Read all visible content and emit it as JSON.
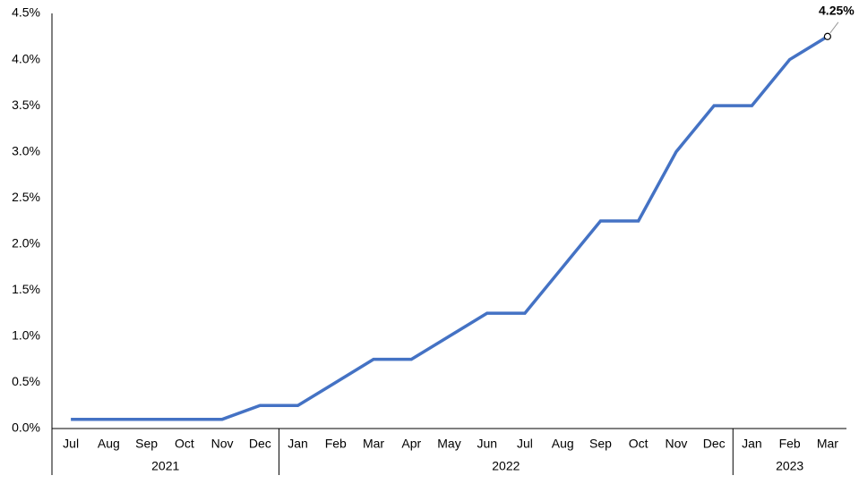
{
  "chart_data": {
    "type": "line",
    "category_groups": [
      {
        "name": "2021",
        "categories": [
          "Jul",
          "Aug",
          "Sep",
          "Oct",
          "Nov",
          "Dec"
        ]
      },
      {
        "name": "2022",
        "categories": [
          "Jan",
          "Feb",
          "Mar",
          "Apr",
          "May",
          "Jun",
          "Jul",
          "Aug",
          "Sep",
          "Oct",
          "Nov",
          "Dec"
        ]
      },
      {
        "name": "2023",
        "categories": [
          "Jan",
          "Feb",
          "Mar"
        ]
      }
    ],
    "values": [
      0.1,
      0.1,
      0.1,
      0.1,
      0.1,
      0.25,
      0.25,
      0.5,
      0.75,
      0.75,
      1.0,
      1.25,
      1.25,
      1.75,
      2.25,
      2.25,
      3.0,
      3.5,
      3.5,
      4.0,
      4.25
    ],
    "value_labels": [
      null,
      null,
      null,
      null,
      null,
      null,
      null,
      null,
      null,
      null,
      null,
      null,
      null,
      null,
      null,
      null,
      null,
      null,
      null,
      null,
      "4.25%"
    ],
    "color": "#4472c4",
    "ylim": [
      0,
      4.5
    ],
    "yticks": [
      {
        "value": 0,
        "label": "0.0%"
      },
      {
        "value": 0.5,
        "label": "0.5%"
      },
      {
        "value": 1,
        "label": "1.0%"
      },
      {
        "value": 1.5,
        "label": "1.5%"
      },
      {
        "value": 2,
        "label": "2.0%"
      },
      {
        "value": 2.5,
        "label": "2.5%"
      },
      {
        "value": 3,
        "label": "3.0%"
      },
      {
        "value": 3.5,
        "label": "3.5%"
      },
      {
        "value": 4,
        "label": "4.0%"
      },
      {
        "value": 4.5,
        "label": "4.5%"
      }
    ],
    "grid": false
  }
}
